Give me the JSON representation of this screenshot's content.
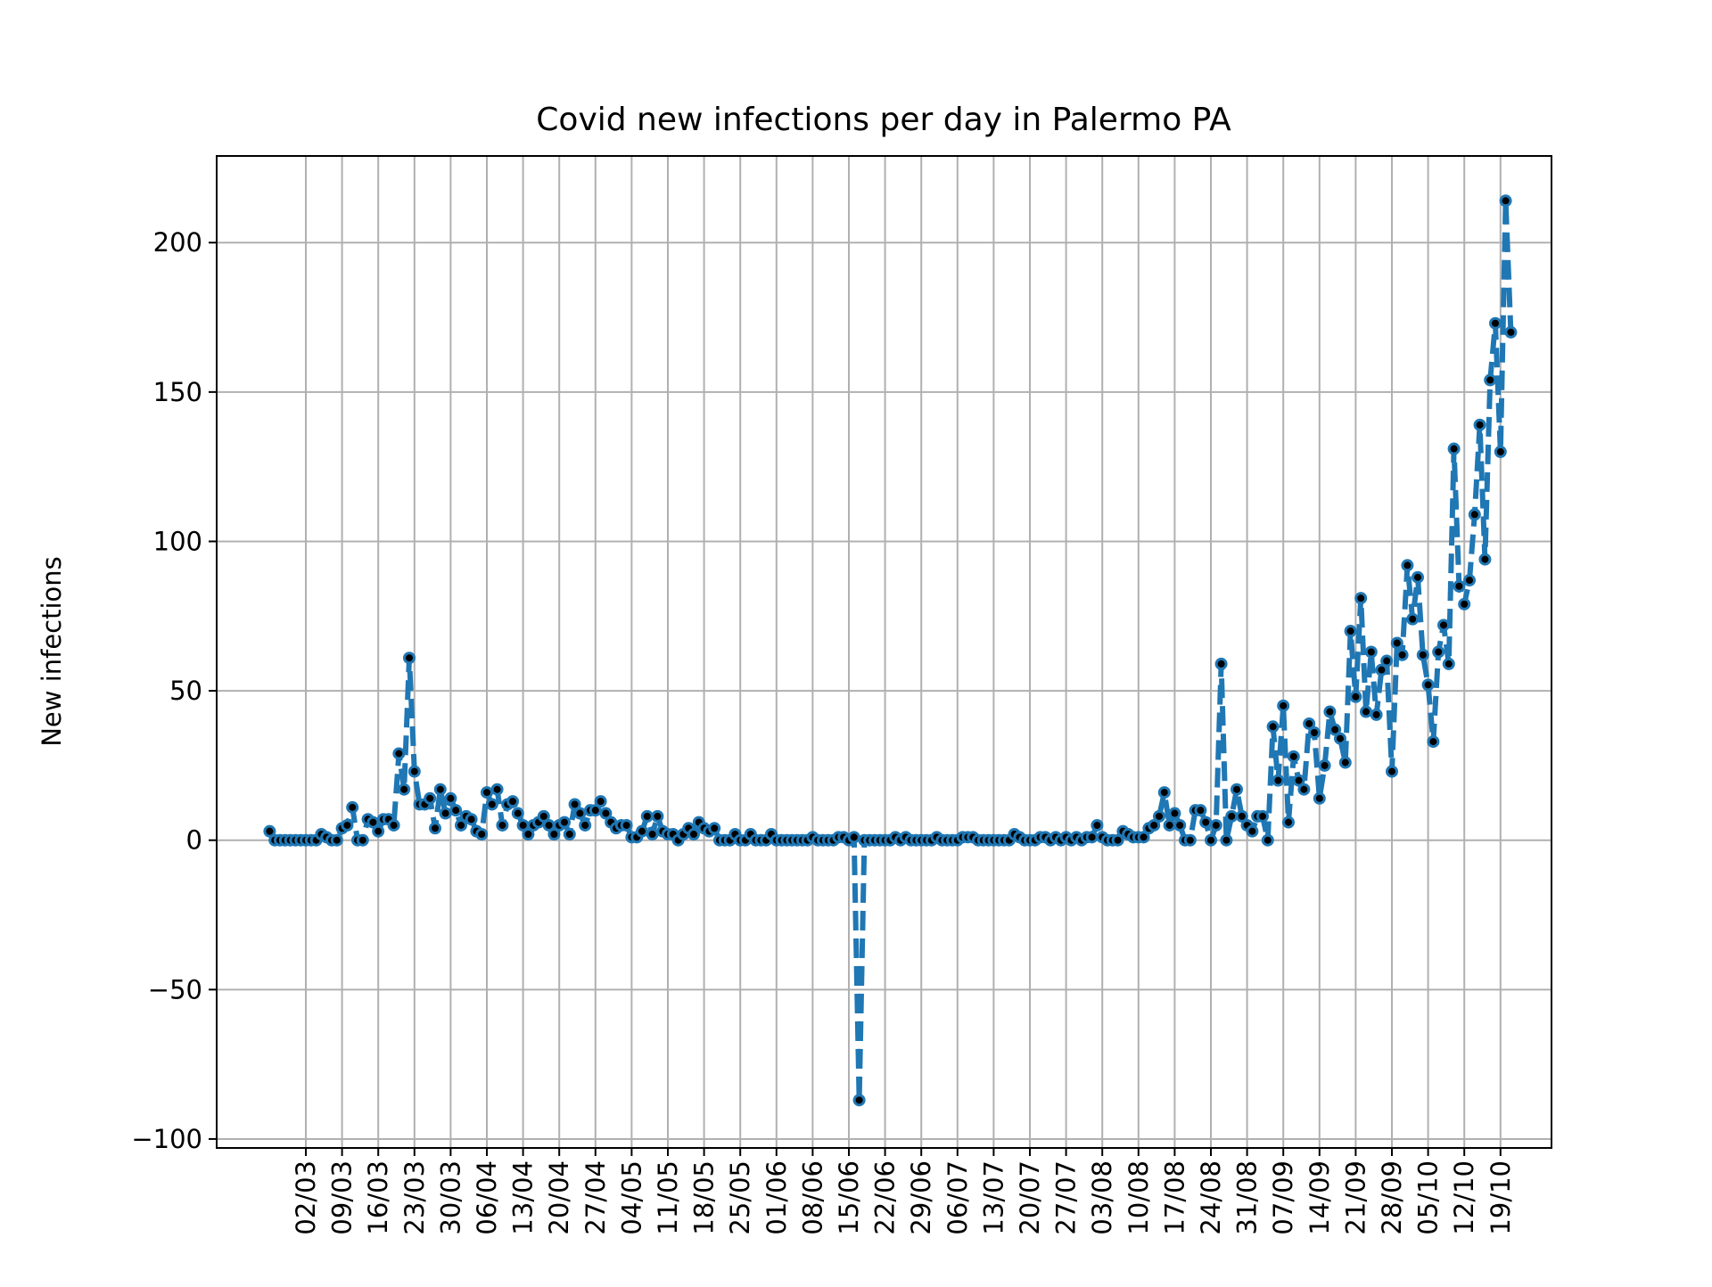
{
  "chart_data": {
    "type": "line",
    "title": "Covid new infections per day in Palermo PA",
    "xlabel": "",
    "ylabel": "New infections",
    "ylim": [
      -103,
      229
    ],
    "yticks": [
      -100,
      -50,
      0,
      50,
      100,
      150,
      200
    ],
    "ytick_labels": [
      "−100",
      "−50",
      "0",
      "50",
      "100",
      "150",
      "200"
    ],
    "xticks": [
      "02/03",
      "09/03",
      "16/03",
      "23/03",
      "30/03",
      "06/04",
      "13/04",
      "20/04",
      "27/04",
      "04/05",
      "11/05",
      "18/05",
      "25/05",
      "01/06",
      "08/06",
      "15/06",
      "22/06",
      "29/06",
      "06/07",
      "13/07",
      "20/07",
      "27/07",
      "03/08",
      "10/08",
      "17/08",
      "24/08",
      "31/08",
      "07/09",
      "14/09",
      "21/09",
      "28/09",
      "05/10",
      "12/10",
      "19/10"
    ],
    "grid": true,
    "line_style": "dashed",
    "marker": "dot",
    "colors": {
      "line": "#1f77b4",
      "marker": "#000000",
      "grid": "#b0b0b0"
    },
    "start_date": "2020-02-24",
    "series": [
      {
        "name": "",
        "values": [
          3,
          0,
          0,
          0,
          0,
          0,
          0,
          0,
          0,
          0,
          2,
          1,
          0,
          0,
          4,
          5,
          11,
          0,
          0,
          7,
          6,
          3,
          7,
          7,
          5,
          29,
          17,
          61,
          23,
          12,
          12,
          14,
          4,
          17,
          9,
          14,
          10,
          5,
          8,
          7,
          3,
          2,
          16,
          12,
          17,
          5,
          12,
          13,
          9,
          5,
          2,
          5,
          6,
          8,
          5,
          2,
          5,
          6,
          2,
          12,
          9,
          5,
          10,
          10,
          13,
          9,
          6,
          4,
          5,
          5,
          1,
          1,
          3,
          8,
          2,
          8,
          3,
          2,
          2,
          0,
          2,
          4,
          2,
          6,
          4,
          3,
          4,
          0,
          0,
          0,
          2,
          0,
          0,
          2,
          0,
          0,
          0,
          2,
          0,
          0,
          0,
          0,
          0,
          0,
          0,
          1,
          0,
          0,
          0,
          0,
          1,
          1,
          0,
          1,
          -87,
          0,
          0,
          0,
          0,
          0,
          0,
          1,
          0,
          1,
          0,
          0,
          0,
          0,
          0,
          1,
          0,
          0,
          0,
          0,
          1,
          1,
          1,
          0,
          0,
          0,
          0,
          0,
          0,
          0,
          2,
          1,
          0,
          0,
          0,
          1,
          1,
          0,
          1,
          0,
          1,
          0,
          1,
          0,
          1,
          1,
          5,
          1,
          0,
          0,
          0,
          3,
          2,
          1,
          1,
          1,
          4,
          5,
          8,
          16,
          5,
          9,
          5,
          0,
          0,
          10,
          10,
          6,
          0,
          5,
          59,
          0,
          8,
          17,
          8,
          5,
          3,
          8,
          8,
          0,
          38,
          20,
          45,
          6,
          28,
          20,
          17,
          39,
          36,
          14,
          25,
          43,
          37,
          34,
          26,
          70,
          48,
          81,
          43,
          63,
          42,
          57,
          60,
          23,
          66,
          62,
          92,
          74,
          88,
          62,
          52,
          33,
          63,
          72,
          59,
          131,
          85,
          79,
          87,
          109,
          139,
          94,
          154,
          173,
          130,
          214,
          170
        ]
      }
    ]
  }
}
